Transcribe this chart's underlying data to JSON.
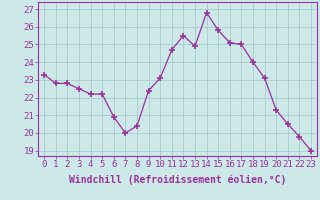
{
  "x": [
    0,
    1,
    2,
    3,
    4,
    5,
    6,
    7,
    8,
    9,
    10,
    11,
    12,
    13,
    14,
    15,
    16,
    17,
    18,
    19,
    20,
    21,
    22,
    23
  ],
  "y": [
    23.3,
    22.8,
    22.8,
    22.5,
    22.2,
    22.2,
    20.9,
    20.0,
    20.4,
    22.4,
    23.1,
    24.7,
    25.5,
    24.9,
    26.8,
    25.8,
    25.1,
    25.0,
    24.0,
    23.1,
    21.3,
    20.5,
    19.8,
    19.0
  ],
  "line_color": "#993399",
  "marker": "+",
  "marker_size": 5,
  "marker_linewidth": 1.2,
  "bg_color": "#cce8e8",
  "grid_color": "#aacccc",
  "ylabel_ticks": [
    19,
    20,
    21,
    22,
    23,
    24,
    25,
    26,
    27
  ],
  "xlabel_ticks": [
    0,
    1,
    2,
    3,
    4,
    5,
    6,
    7,
    8,
    9,
    10,
    11,
    12,
    13,
    14,
    15,
    16,
    17,
    18,
    19,
    20,
    21,
    22,
    23
  ],
  "xlabel_label": "Windchill (Refroidissement éolien,°C)",
  "ylim": [
    18.7,
    27.4
  ],
  "xlim": [
    -0.5,
    23.5
  ],
  "title_color": "#993399",
  "tick_fontsize": 6.5,
  "xlabel_fontsize": 7.0
}
